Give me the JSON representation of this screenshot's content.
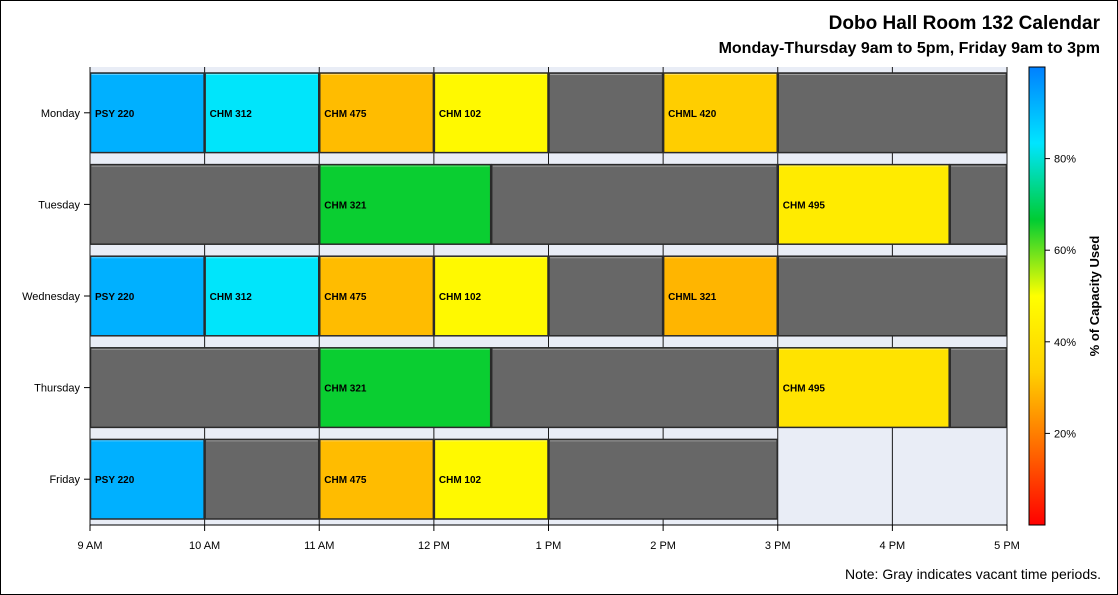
{
  "chart_data": {
    "type": "bar",
    "subtype": "horizontal-timeline",
    "title": "Dobo Hall Room 132 Calendar",
    "subtitle": "Monday-Thursday 9am to 5pm, Friday 9am to 3pm",
    "footnote": "Note: Gray indicates vacant time periods.",
    "x_axis": {
      "min_hour": 9,
      "max_hour": 17,
      "tick_labels": [
        "9 AM",
        "10 AM",
        "11 AM",
        "12 PM",
        "1 PM",
        "2 PM",
        "3 PM",
        "4 PM",
        "5 PM"
      ]
    },
    "categories": [
      "Monday",
      "Tuesday",
      "Wednesday",
      "Thursday",
      "Friday"
    ],
    "rows": [
      {
        "day": "Monday",
        "segments": [
          {
            "start": 9,
            "end": 10,
            "label": "PSY 220",
            "capacity": 92
          },
          {
            "start": 10,
            "end": 11,
            "label": "CHM 312",
            "capacity": 83
          },
          {
            "start": 11,
            "end": 12,
            "label": "CHM 475",
            "capacity": 30
          },
          {
            "start": 12,
            "end": 13,
            "label": "CHM 102",
            "capacity": 48
          },
          {
            "start": 13,
            "end": 14,
            "label": "",
            "capacity": null
          },
          {
            "start": 14,
            "end": 15,
            "label": "CHML 420",
            "capacity": 33
          },
          {
            "start": 15,
            "end": 17,
            "label": "",
            "capacity": null
          }
        ]
      },
      {
        "day": "Tuesday",
        "segments": [
          {
            "start": 9,
            "end": 11,
            "label": "",
            "capacity": null
          },
          {
            "start": 11,
            "end": 12.5,
            "label": "CHM 321",
            "capacity": 66
          },
          {
            "start": 12.5,
            "end": 15,
            "label": "",
            "capacity": null
          },
          {
            "start": 15,
            "end": 16.5,
            "label": "CHM 495",
            "capacity": 43
          },
          {
            "start": 16.5,
            "end": 17,
            "label": "",
            "capacity": null
          }
        ]
      },
      {
        "day": "Wednesday",
        "segments": [
          {
            "start": 9,
            "end": 10,
            "label": "PSY 220",
            "capacity": 92
          },
          {
            "start": 10,
            "end": 11,
            "label": "CHM 312",
            "capacity": 83
          },
          {
            "start": 11,
            "end": 12,
            "label": "CHM 475",
            "capacity": 30
          },
          {
            "start": 12,
            "end": 13,
            "label": "CHM 102",
            "capacity": 48
          },
          {
            "start": 13,
            "end": 14,
            "label": "",
            "capacity": null
          },
          {
            "start": 14,
            "end": 15,
            "label": "CHML 321",
            "capacity": 29
          },
          {
            "start": 15,
            "end": 17,
            "label": "",
            "capacity": null
          }
        ]
      },
      {
        "day": "Thursday",
        "segments": [
          {
            "start": 9,
            "end": 11,
            "label": "",
            "capacity": null
          },
          {
            "start": 11,
            "end": 12.5,
            "label": "CHM 321",
            "capacity": 66
          },
          {
            "start": 12.5,
            "end": 15,
            "label": "",
            "capacity": null
          },
          {
            "start": 15,
            "end": 16.5,
            "label": "CHM 495",
            "capacity": 40
          },
          {
            "start": 16.5,
            "end": 17,
            "label": "",
            "capacity": null
          }
        ]
      },
      {
        "day": "Friday",
        "segments": [
          {
            "start": 9,
            "end": 10,
            "label": "PSY 220",
            "capacity": 92
          },
          {
            "start": 10,
            "end": 11,
            "label": "",
            "capacity": null
          },
          {
            "start": 11,
            "end": 12,
            "label": "CHM 475",
            "capacity": 30
          },
          {
            "start": 12,
            "end": 13,
            "label": "CHM 102",
            "capacity": 48
          },
          {
            "start": 13,
            "end": 15,
            "label": "",
            "capacity": null
          }
        ]
      }
    ],
    "colorbar": {
      "title": "% of Capacity Used",
      "min": 0,
      "max": 100,
      "tick_values": [
        20,
        40,
        60,
        80
      ],
      "tick_labels": [
        "20%",
        "40%",
        "60%",
        "80%"
      ],
      "stops": [
        "#ff0000",
        "#ff6a00",
        "#ffd000",
        "#ffff00",
        "#00cc33",
        "#00e5ff",
        "#0080ff"
      ]
    },
    "colors": {
      "vacant": "#676767",
      "unavailable": "#e9edf6",
      "plot_background": "#e9edf6"
    }
  }
}
